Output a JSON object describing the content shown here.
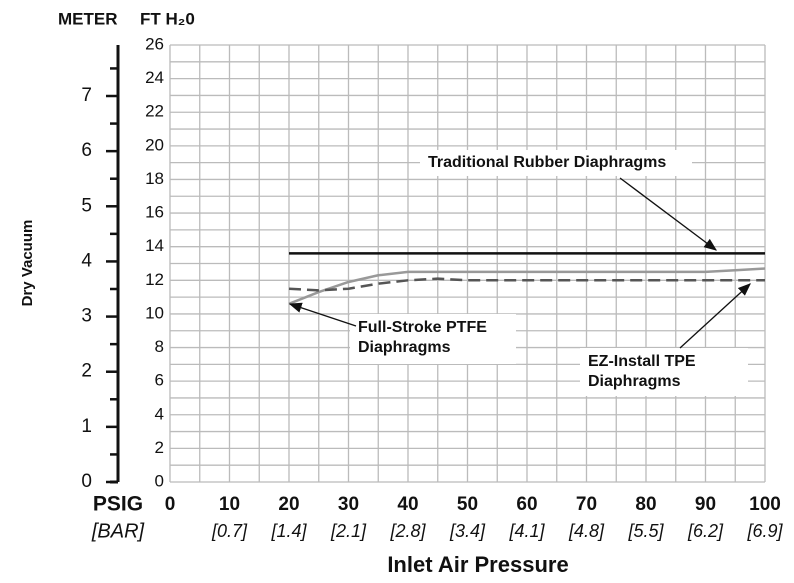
{
  "chart_data": {
    "type": "line",
    "xlabel": "Inlet Air Pressure",
    "ylabel": "FT H₂0",
    "y2label": "METER",
    "side_label": "Dry Vacuum",
    "x_unit_label": "PSIG",
    "x_unit2_label": "[BAR]",
    "xlim": [
      0,
      100
    ],
    "xticks": [
      0,
      10,
      20,
      30,
      40,
      50,
      60,
      70,
      80,
      90,
      100
    ],
    "bar_ticks": [
      {
        "value": 10,
        "label": "[0.7]"
      },
      {
        "value": 20,
        "label": "[1.4]"
      },
      {
        "value": 30,
        "label": "[2.1]"
      },
      {
        "value": 40,
        "label": "[2.8]"
      },
      {
        "value": 50,
        "label": "[3.4]"
      },
      {
        "value": 60,
        "label": "[4.1]"
      },
      {
        "value": 70,
        "label": "[4.8]"
      },
      {
        "value": 80,
        "label": "[5.5]"
      },
      {
        "value": 90,
        "label": "[6.2]"
      },
      {
        "value": 100,
        "label": "[6.9]"
      }
    ],
    "ylim": [
      0,
      26
    ],
    "yticks": [
      0,
      2,
      4,
      6,
      8,
      10,
      12,
      14,
      16,
      18,
      20,
      22,
      24,
      26
    ],
    "y2lim": [
      0,
      7.925
    ],
    "y2ticks": [
      0,
      1,
      2,
      3,
      4,
      5,
      6,
      7
    ],
    "grid": true,
    "series": [
      {
        "name": "Traditional Rubber Diaphragms",
        "color": "#111111",
        "dash": false,
        "x": [
          20,
          100
        ],
        "values": [
          13.6,
          13.6
        ]
      },
      {
        "name": "Full-Stroke PTFE Diaphragms",
        "color": "#999999",
        "dash": false,
        "x": [
          20,
          25,
          30,
          35,
          40,
          45,
          50,
          60,
          70,
          80,
          90,
          95,
          100
        ],
        "values": [
          10.6,
          11.3,
          11.9,
          12.3,
          12.5,
          12.5,
          12.5,
          12.5,
          12.5,
          12.5,
          12.5,
          12.6,
          12.7
        ]
      },
      {
        "name": "EZ-Install TPE Diaphragms",
        "color": "#555555",
        "dash": true,
        "x": [
          20,
          25,
          30,
          35,
          40,
          45,
          50,
          60,
          70,
          80,
          90,
          100
        ],
        "values": [
          11.5,
          11.4,
          11.5,
          11.8,
          12.0,
          12.1,
          12.0,
          12.0,
          12.0,
          12.0,
          12.0,
          12.0
        ]
      }
    ]
  }
}
